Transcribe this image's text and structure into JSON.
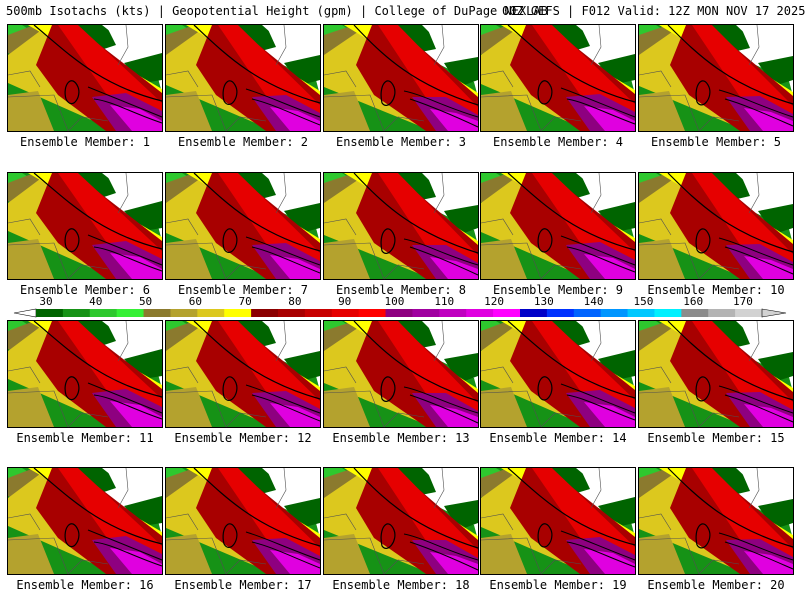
{
  "header": {
    "title_left": "500mb Isotachs (kts) | Geopotential Height (gpm) | College of DuPage NEXLAB",
    "title_right": "00Z GEFS | F012 Valid: 12Z MON NOV 17 2025"
  },
  "colorbar": {
    "ticks": [
      "30",
      "40",
      "50",
      "60",
      "70",
      "80",
      "90",
      "100",
      "110",
      "120",
      "130",
      "140",
      "150",
      "160",
      "170"
    ],
    "colors": [
      "#006400",
      "#169216",
      "#2ec82e",
      "#35f035",
      "#8b7a2e",
      "#b4a22e",
      "#dcc81e",
      "#ffff00",
      "#8b0000",
      "#a80000",
      "#c80000",
      "#e60000",
      "#ff0000",
      "#8e0080",
      "#a000a0",
      "#c000c0",
      "#e000e0",
      "#ff00ff",
      "#0000c8",
      "#0032ff",
      "#0064ff",
      "#0096ff",
      "#00c8ff",
      "#00f0ff",
      "#8c8c8c",
      "#b4b4b4",
      "#d2d2d2"
    ]
  },
  "panels": [
    {
      "label": "Ensemble Member: 1"
    },
    {
      "label": "Ensemble Member: 2"
    },
    {
      "label": "Ensemble Member: 3"
    },
    {
      "label": "Ensemble Member: 4"
    },
    {
      "label": "Ensemble Member: 5"
    },
    {
      "label": "Ensemble Member: 6"
    },
    {
      "label": "Ensemble Member: 7"
    },
    {
      "label": "Ensemble Member: 8"
    },
    {
      "label": "Ensemble Member: 9"
    },
    {
      "label": "Ensemble Member: 10"
    },
    {
      "label": "Ensemble Member: 11"
    },
    {
      "label": "Ensemble Member: 12"
    },
    {
      "label": "Ensemble Member: 13"
    },
    {
      "label": "Ensemble Member: 14"
    },
    {
      "label": "Ensemble Member: 15"
    },
    {
      "label": "Ensemble Member: 16"
    },
    {
      "label": "Ensemble Member: 17"
    },
    {
      "label": "Ensemble Member: 18"
    },
    {
      "label": "Ensemble Member: 19"
    },
    {
      "label": "Ensemble Member: 20"
    }
  ]
}
